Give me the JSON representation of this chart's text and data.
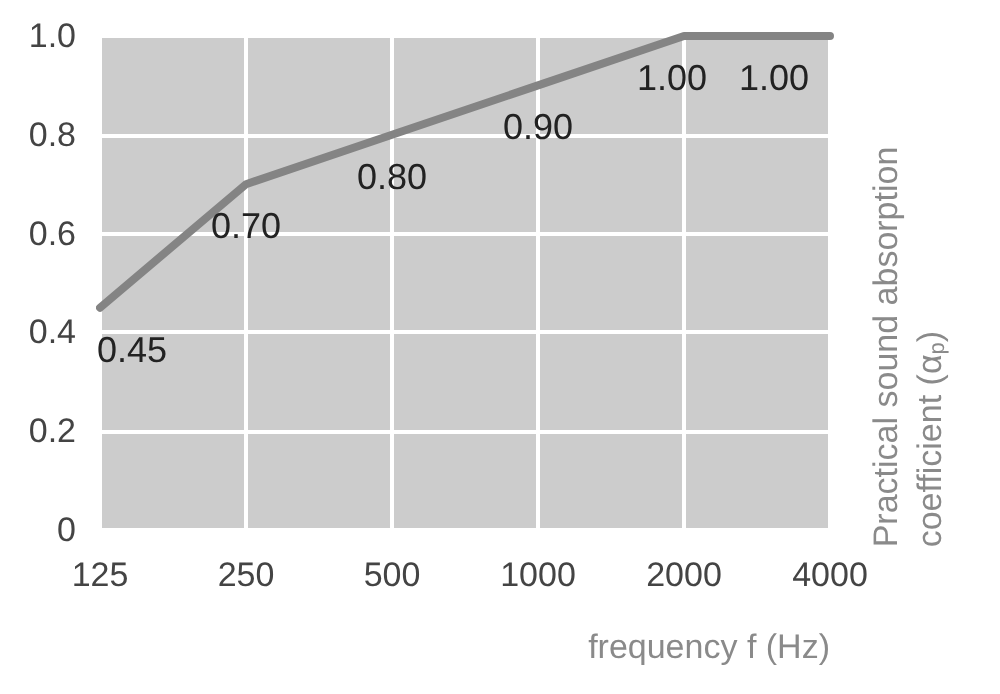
{
  "chart_data": {
    "type": "line",
    "categories": [
      "125",
      "250",
      "500",
      "1000",
      "2000",
      "4000"
    ],
    "series": [
      {
        "color": "#848484",
        "values": [
          0.45,
          0.7,
          0.8,
          0.9,
          1.0,
          1.0
        ],
        "value_labels": [
          "0.45",
          "0.70",
          "0.80",
          "0.90",
          "1.00",
          "1.00"
        ]
      }
    ],
    "xlabel": "frequency f (Hz)",
    "ylabel": "Practical sound absorption coefficient (α$_{p}$)",
    "ylim": [
      0,
      1
    ],
    "yticks": [
      0,
      0.2,
      0.4,
      0.6,
      0.8,
      {
        "value": 1,
        "label": "1.0"
      }
    ],
    "grid": true,
    "marker": "none",
    "line_style": "solid"
  }
}
